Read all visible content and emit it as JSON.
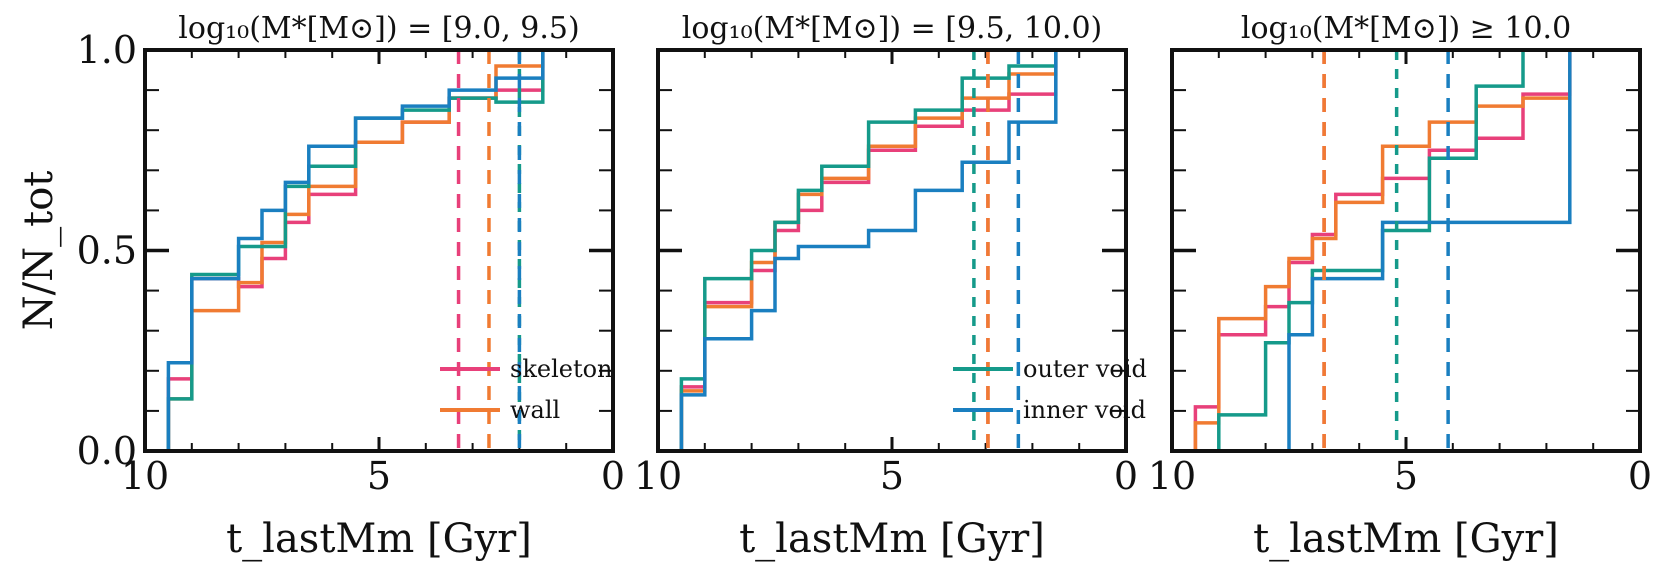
{
  "colors": {
    "skeleton": "#e8407a",
    "wall": "#f07b32",
    "outer void": "#159a8a",
    "inner void": "#1a7fc0"
  },
  "chart_data": [
    {
      "type": "step",
      "title": "log₁₀(M*[M⊙]) = [9.0, 9.5)",
      "xlabel": "t_lastMm [Gyr]",
      "ylabel": "N/N_tot",
      "xlim": [
        10,
        0
      ],
      "ylim": [
        0,
        1
      ],
      "xticks": [
        "10",
        "5",
        "0"
      ],
      "yticks": [
        "0.0",
        "0.5",
        "1.0"
      ],
      "legend": {
        "placement": "bottom-right",
        "entries": [
          "skeleton",
          "wall"
        ]
      },
      "series": [
        {
          "name": "skeleton",
          "x": [
            10,
            9.5,
            9,
            8.5,
            8,
            7.5,
            7,
            6.5,
            6,
            5.5,
            5,
            4.5,
            4,
            3.5,
            3,
            2.5,
            2,
            1.5,
            1,
            0
          ],
          "y": [
            0,
            0.18,
            0.43,
            0.43,
            0.41,
            0.48,
            0.57,
            0.64,
            0.64,
            0.77,
            0.77,
            0.82,
            0.82,
            0.88,
            0.88,
            0.9,
            0.9,
            1.0,
            1.0,
            1.0
          ],
          "median": 3.3
        },
        {
          "name": "wall",
          "x": [
            10,
            9.5,
            9,
            8.5,
            8,
            7.5,
            7,
            6.5,
            6,
            5.5,
            5,
            4.5,
            4,
            3.5,
            3,
            2.5,
            2,
            1.5,
            1,
            0
          ],
          "y": [
            0,
            0.13,
            0.35,
            0.35,
            0.42,
            0.52,
            0.59,
            0.66,
            0.66,
            0.77,
            0.77,
            0.82,
            0.82,
            0.88,
            0.88,
            0.96,
            0.96,
            1.0,
            1.0,
            1.0
          ],
          "median": 2.65
        },
        {
          "name": "outer void",
          "x": [
            10,
            9.5,
            9,
            8.5,
            8,
            7.5,
            7,
            6.5,
            6,
            5.5,
            5,
            4.5,
            4,
            3.5,
            3,
            2.5,
            2,
            1.5,
            1,
            0
          ],
          "y": [
            0,
            0.13,
            0.44,
            0.44,
            0.51,
            0.51,
            0.66,
            0.71,
            0.71,
            0.83,
            0.83,
            0.85,
            0.85,
            0.88,
            0.88,
            0.87,
            0.87,
            1.0,
            1.0,
            1.0
          ],
          "median": 2.0
        },
        {
          "name": "inner void",
          "x": [
            10,
            9.5,
            9,
            8.5,
            8,
            7.5,
            7,
            6.5,
            6,
            5.5,
            5,
            4.5,
            4,
            3.5,
            3,
            2.5,
            2,
            1.5,
            1,
            0
          ],
          "y": [
            0,
            0.22,
            0.43,
            0.43,
            0.53,
            0.6,
            0.67,
            0.76,
            0.76,
            0.83,
            0.83,
            0.86,
            0.86,
            0.9,
            0.9,
            0.93,
            0.93,
            1.0,
            1.0,
            1.0
          ],
          "median": 2.0
        }
      ]
    },
    {
      "type": "step",
      "title": "log₁₀(M*[M⊙]) = [9.5, 10.0)",
      "xlabel": "t_lastMm [Gyr]",
      "ylabel": "",
      "xlim": [
        10,
        0
      ],
      "ylim": [
        0,
        1
      ],
      "xticks": [
        "10",
        "5",
        "0"
      ],
      "yticks": [],
      "legend": {
        "placement": "bottom-right",
        "entries": [
          "outer void",
          "inner void"
        ]
      },
      "series": [
        {
          "name": "skeleton",
          "x": [
            10,
            9.5,
            9,
            8.5,
            8,
            7.5,
            7,
            6.5,
            6,
            5.5,
            5,
            4.5,
            4,
            3.5,
            3,
            2.5,
            2,
            1.5,
            1,
            0
          ],
          "y": [
            0,
            0.16,
            0.37,
            0.37,
            0.45,
            0.55,
            0.6,
            0.67,
            0.67,
            0.75,
            0.75,
            0.81,
            0.81,
            0.85,
            0.85,
            0.89,
            0.89,
            1.0,
            1.0,
            1.0
          ],
          "median": 2.95
        },
        {
          "name": "wall",
          "x": [
            10,
            9.5,
            9,
            8.5,
            8,
            7.5,
            7,
            6.5,
            6,
            5.5,
            5,
            4.5,
            4,
            3.5,
            3,
            2.5,
            2,
            1.5,
            1,
            0
          ],
          "y": [
            0,
            0.15,
            0.36,
            0.36,
            0.47,
            0.57,
            0.64,
            0.68,
            0.68,
            0.76,
            0.76,
            0.83,
            0.83,
            0.88,
            0.88,
            0.94,
            0.94,
            1.0,
            1.0,
            1.0
          ],
          "median": 2.95
        },
        {
          "name": "outer void",
          "x": [
            10,
            9.5,
            9,
            8.5,
            8,
            7.5,
            7,
            6.5,
            6,
            5.5,
            5,
            4.5,
            4,
            3.5,
            3,
            2.5,
            2,
            1.5,
            1,
            0
          ],
          "y": [
            0,
            0.18,
            0.43,
            0.43,
            0.5,
            0.57,
            0.65,
            0.71,
            0.71,
            0.82,
            0.82,
            0.85,
            0.85,
            0.93,
            0.93,
            0.96,
            0.96,
            1.0,
            1.0,
            1.0
          ],
          "median": 3.25
        },
        {
          "name": "inner void",
          "x": [
            10,
            9.5,
            9,
            8.5,
            8,
            7.5,
            7,
            6.5,
            6,
            5.5,
            5,
            4.5,
            4,
            3.5,
            3,
            2.5,
            2,
            1.5,
            1,
            0
          ],
          "y": [
            0,
            0.14,
            0.28,
            0.28,
            0.35,
            0.48,
            0.51,
            0.51,
            0.51,
            0.55,
            0.55,
            0.65,
            0.65,
            0.72,
            0.72,
            0.82,
            0.82,
            1.0,
            1.0,
            1.0
          ],
          "median": 2.3
        }
      ]
    },
    {
      "type": "step",
      "title": "log₁₀(M*[M⊙]) ≥ 10.0",
      "xlabel": "t_lastMm [Gyr]",
      "ylabel": "",
      "xlim": [
        10,
        0
      ],
      "ylim": [
        0,
        1
      ],
      "xticks": [
        "10",
        "5",
        "0"
      ],
      "yticks": [],
      "legend": null,
      "series": [
        {
          "name": "skeleton",
          "x": [
            10,
            9.5,
            9,
            8.5,
            8,
            7.5,
            7,
            6.5,
            6,
            5.5,
            5,
            4.5,
            4,
            3.5,
            3,
            2.5,
            2,
            1.5,
            1,
            0
          ],
          "y": [
            0,
            0.11,
            0.29,
            0.29,
            0.36,
            0.47,
            0.54,
            0.64,
            0.64,
            0.68,
            0.68,
            0.75,
            0.75,
            0.78,
            0.78,
            0.89,
            0.89,
            1.0,
            1.0,
            1.0
          ],
          "median": 6.75
        },
        {
          "name": "wall",
          "x": [
            10,
            9.5,
            9,
            8.5,
            8,
            7.5,
            7,
            6.5,
            6,
            5.5,
            5,
            4.5,
            4,
            3.5,
            3,
            2.5,
            2,
            1.5,
            1,
            0
          ],
          "y": [
            0,
            0.07,
            0.33,
            0.33,
            0.41,
            0.48,
            0.53,
            0.62,
            0.62,
            0.76,
            0.76,
            0.82,
            0.82,
            0.86,
            0.86,
            0.88,
            0.88,
            1.0,
            1.0,
            1.0
          ],
          "median": 6.75
        },
        {
          "name": "outer void",
          "x": [
            10,
            9.5,
            9,
            8.5,
            8,
            7.5,
            7,
            6.5,
            6,
            5.5,
            5,
            4.5,
            4,
            3.5,
            3,
            2.5,
            2,
            1.5,
            1,
            0
          ],
          "y": [
            0,
            0,
            0.09,
            0.09,
            0.27,
            0.37,
            0.45,
            0.45,
            0.45,
            0.55,
            0.55,
            0.73,
            0.73,
            0.91,
            0.91,
            1.0,
            1.0,
            1.0,
            1.0,
            1.0
          ],
          "median": 5.2
        },
        {
          "name": "inner void",
          "x": [
            10,
            9.5,
            9,
            8.5,
            8,
            7.5,
            7,
            6.5,
            6,
            5.5,
            5,
            4.5,
            4,
            3.5,
            3,
            2.5,
            2,
            1.5,
            1,
            0
          ],
          "y": [
            0,
            0,
            0,
            0,
            0,
            0.29,
            0.43,
            0.43,
            0.43,
            0.57,
            0.57,
            0.57,
            0.57,
            0.57,
            0.57,
            0.57,
            0.57,
            1.0,
            1.0,
            1.0
          ],
          "median": 4.1
        }
      ]
    }
  ]
}
